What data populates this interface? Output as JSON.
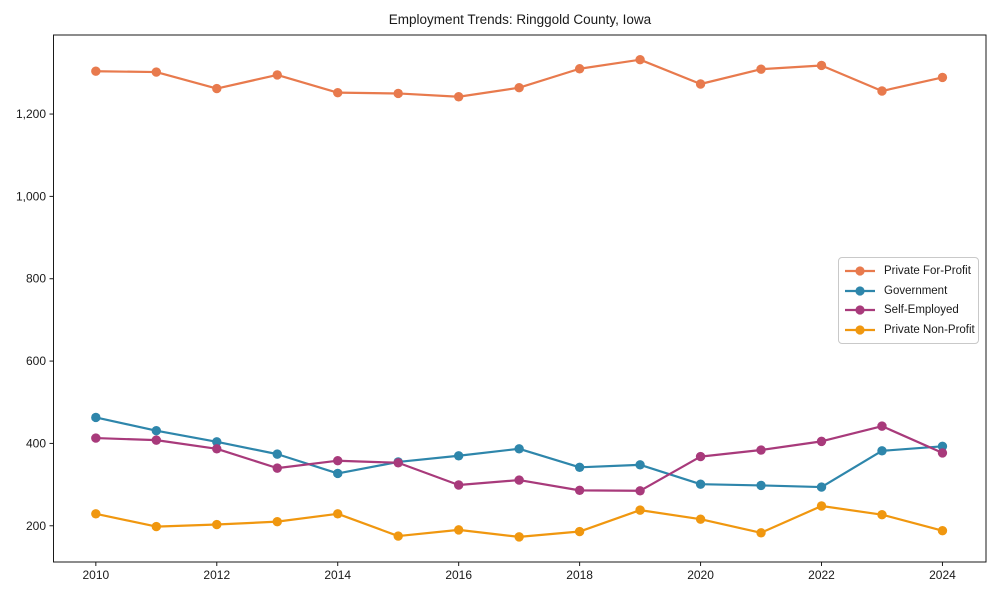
{
  "chart_data": {
    "type": "line",
    "title": "Employment Trends: Ringgold County, Iowa",
    "xlabel": "",
    "ylabel": "",
    "x": [
      2010,
      2011,
      2012,
      2013,
      2014,
      2015,
      2016,
      2017,
      2018,
      2019,
      2020,
      2021,
      2022,
      2023,
      2024
    ],
    "series": [
      {
        "name": "Private For-Profit",
        "color": "#E87A4D",
        "values": [
          1304,
          1302,
          1262,
          1295,
          1252,
          1250,
          1242,
          1264,
          1310,
          1332,
          1273,
          1309,
          1318,
          1256,
          1289
        ]
      },
      {
        "name": "Government",
        "color": "#2E86AB",
        "values": [
          463,
          431,
          404,
          374,
          327,
          355,
          370,
          387,
          342,
          348,
          301,
          298,
          294,
          382,
          393
        ]
      },
      {
        "name": "Self-Employed",
        "color": "#A83A7B",
        "values": [
          413,
          408,
          387,
          340,
          358,
          353,
          299,
          311,
          286,
          285,
          368,
          384,
          405,
          442,
          377
        ]
      },
      {
        "name": "Private Non-Profit",
        "color": "#F0970F",
        "values": [
          229,
          198,
          203,
          210,
          229,
          175,
          190,
          173,
          186,
          238,
          216,
          183,
          248,
          227,
          188
        ]
      }
    ],
    "xticks": [
      2010,
      2012,
      2014,
      2016,
      2018,
      2020,
      2022,
      2024
    ],
    "yticks": [
      200,
      400,
      600,
      800,
      1000,
      1200
    ],
    "ytick_labels": [
      "200",
      "400",
      "600",
      "800",
      "1,000",
      "1,200"
    ],
    "xlim": [
      2009.3,
      2024.72
    ],
    "ylim": [
      112,
      1392
    ],
    "grid": false,
    "legend_position": "center right",
    "marker": "circle",
    "axis_color": "#1a1a1a"
  }
}
